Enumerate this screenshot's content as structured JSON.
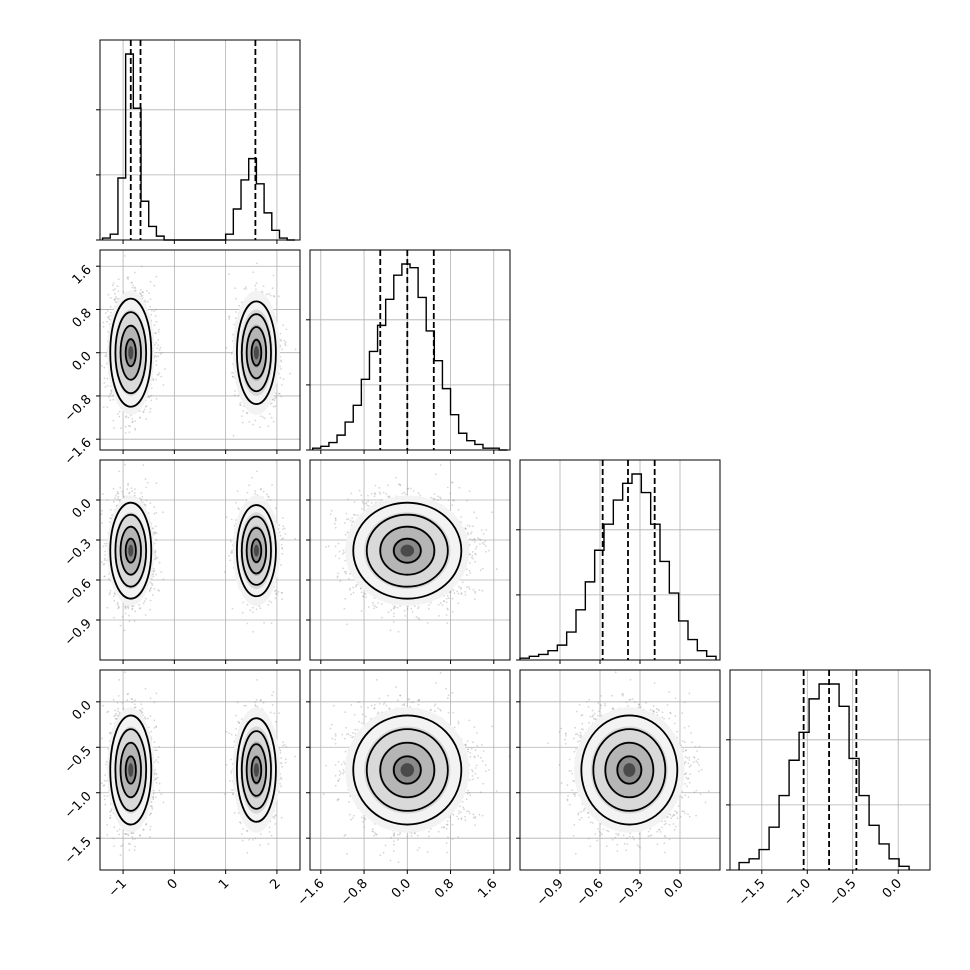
{
  "colors": {
    "ink": "#000000",
    "grid": "#b0b0b0",
    "scatter": "#8c8c8c"
  },
  "chart_data": {
    "type": "corner",
    "title": "",
    "grid": true,
    "parameters": [
      {
        "index": 0,
        "range": [
          -1.45,
          2.45
        ],
        "ticks": [
          -1,
          0,
          1,
          2
        ],
        "tick_labels": [
          "−1",
          "0",
          "1",
          "2"
        ],
        "modes": [
          {
            "mean": -0.85,
            "sd": 0.2,
            "weight": 0.6
          },
          {
            "mean": 1.6,
            "sd": 0.2,
            "weight": 0.4
          }
        ]
      },
      {
        "index": 1,
        "range": [
          -1.8,
          1.9
        ],
        "ticks": [
          -1.6,
          -0.8,
          0.0,
          0.8,
          1.6
        ],
        "tick_labels": [
          "−1.6",
          "−0.8",
          "0.0",
          "0.8",
          "1.6"
        ],
        "modes": [
          {
            "mean": 0.0,
            "sd": 0.5,
            "weight": 1
          }
        ]
      },
      {
        "index": 2,
        "range": [
          -1.2,
          0.3
        ],
        "ticks": [
          -0.9,
          -0.6,
          -0.3,
          0.0
        ],
        "tick_labels": [
          "−0.9",
          "−0.6",
          "−0.3",
          "0.0"
        ],
        "modes": [
          {
            "mean": -0.38,
            "sd": 0.18,
            "weight": 1
          }
        ]
      },
      {
        "index": 3,
        "range": [
          -1.85,
          0.35
        ],
        "ticks": [
          -1.5,
          -1.0,
          -0.5,
          0.0
        ],
        "tick_labels": [
          "−1.5",
          "−1.0",
          "−0.5",
          "0.0"
        ],
        "modes": [
          {
            "mean": -0.75,
            "sd": 0.3,
            "weight": 1
          }
        ]
      }
    ],
    "histograms": [
      {
        "param": 0,
        "edges": [
          -1.4,
          -1.25,
          -1.1,
          -0.95,
          -0.8,
          -0.65,
          -0.5,
          -0.35,
          -0.2,
          -0.05,
          0.1,
          0.25,
          0.4,
          0.55,
          0.7,
          0.85,
          1.0,
          1.15,
          1.3,
          1.45,
          1.6,
          1.75,
          1.9,
          2.05,
          2.2,
          2.35
        ],
        "counts": [
          0.01,
          0.03,
          0.32,
          0.96,
          0.68,
          0.2,
          0.07,
          0.02,
          0.0,
          0.0,
          0.0,
          0.0,
          0.0,
          0.0,
          0.0,
          0.0,
          0.03,
          0.16,
          0.31,
          0.42,
          0.29,
          0.14,
          0.05,
          0.01,
          0.0
        ],
        "quantiles": [
          -0.85,
          -0.66,
          1.58
        ]
      },
      {
        "param": 1,
        "edges": [
          -1.75,
          -1.6,
          -1.45,
          -1.3,
          -1.15,
          -1.0,
          -0.85,
          -0.7,
          -0.55,
          -0.4,
          -0.25,
          -0.1,
          0.05,
          0.2,
          0.35,
          0.5,
          0.65,
          0.8,
          0.95,
          1.1,
          1.25,
          1.4,
          1.55,
          1.7,
          1.85
        ],
        "counts": [
          0.01,
          0.02,
          0.04,
          0.08,
          0.15,
          0.24,
          0.38,
          0.53,
          0.67,
          0.81,
          0.94,
          1.0,
          0.98,
          0.82,
          0.64,
          0.48,
          0.33,
          0.19,
          0.09,
          0.05,
          0.03,
          0.01,
          0.01,
          0.0
        ],
        "quantiles": [
          -0.5,
          0.0,
          0.49
        ]
      },
      {
        "param": 2,
        "edges": [
          -1.2,
          -1.13,
          -1.06,
          -0.99,
          -0.92,
          -0.85,
          -0.78,
          -0.71,
          -0.64,
          -0.57,
          -0.5,
          -0.43,
          -0.36,
          -0.29,
          -0.22,
          -0.15,
          -0.08,
          -0.01,
          0.06,
          0.13,
          0.2,
          0.27
        ],
        "counts": [
          0.01,
          0.02,
          0.03,
          0.05,
          0.08,
          0.15,
          0.27,
          0.42,
          0.59,
          0.73,
          0.86,
          0.95,
          1.0,
          0.9,
          0.73,
          0.53,
          0.36,
          0.21,
          0.11,
          0.05,
          0.02
        ],
        "quantiles": [
          -0.58,
          -0.39,
          -0.19
        ]
      },
      {
        "param": 3,
        "edges": [
          -1.75,
          -1.64,
          -1.53,
          -1.42,
          -1.31,
          -1.2,
          -1.09,
          -0.98,
          -0.87,
          -0.76,
          -0.65,
          -0.54,
          -0.43,
          -0.32,
          -0.21,
          -0.1,
          0.01,
          0.12
        ],
        "counts": [
          0.04,
          0.06,
          0.11,
          0.23,
          0.4,
          0.59,
          0.74,
          0.92,
          1.0,
          1.0,
          0.88,
          0.6,
          0.4,
          0.24,
          0.14,
          0.06,
          0.02
        ],
        "quantiles": [
          -1.04,
          -0.76,
          -0.46
        ]
      }
    ],
    "pairs": [
      {
        "x": 0,
        "y": 1
      },
      {
        "x": 0,
        "y": 2
      },
      {
        "x": 1,
        "y": 2
      },
      {
        "x": 0,
        "y": 3
      },
      {
        "x": 1,
        "y": 3
      },
      {
        "x": 2,
        "y": 3
      }
    ],
    "contour_levels": [
      0.5,
      1.0,
      1.5,
      2.0
    ]
  }
}
